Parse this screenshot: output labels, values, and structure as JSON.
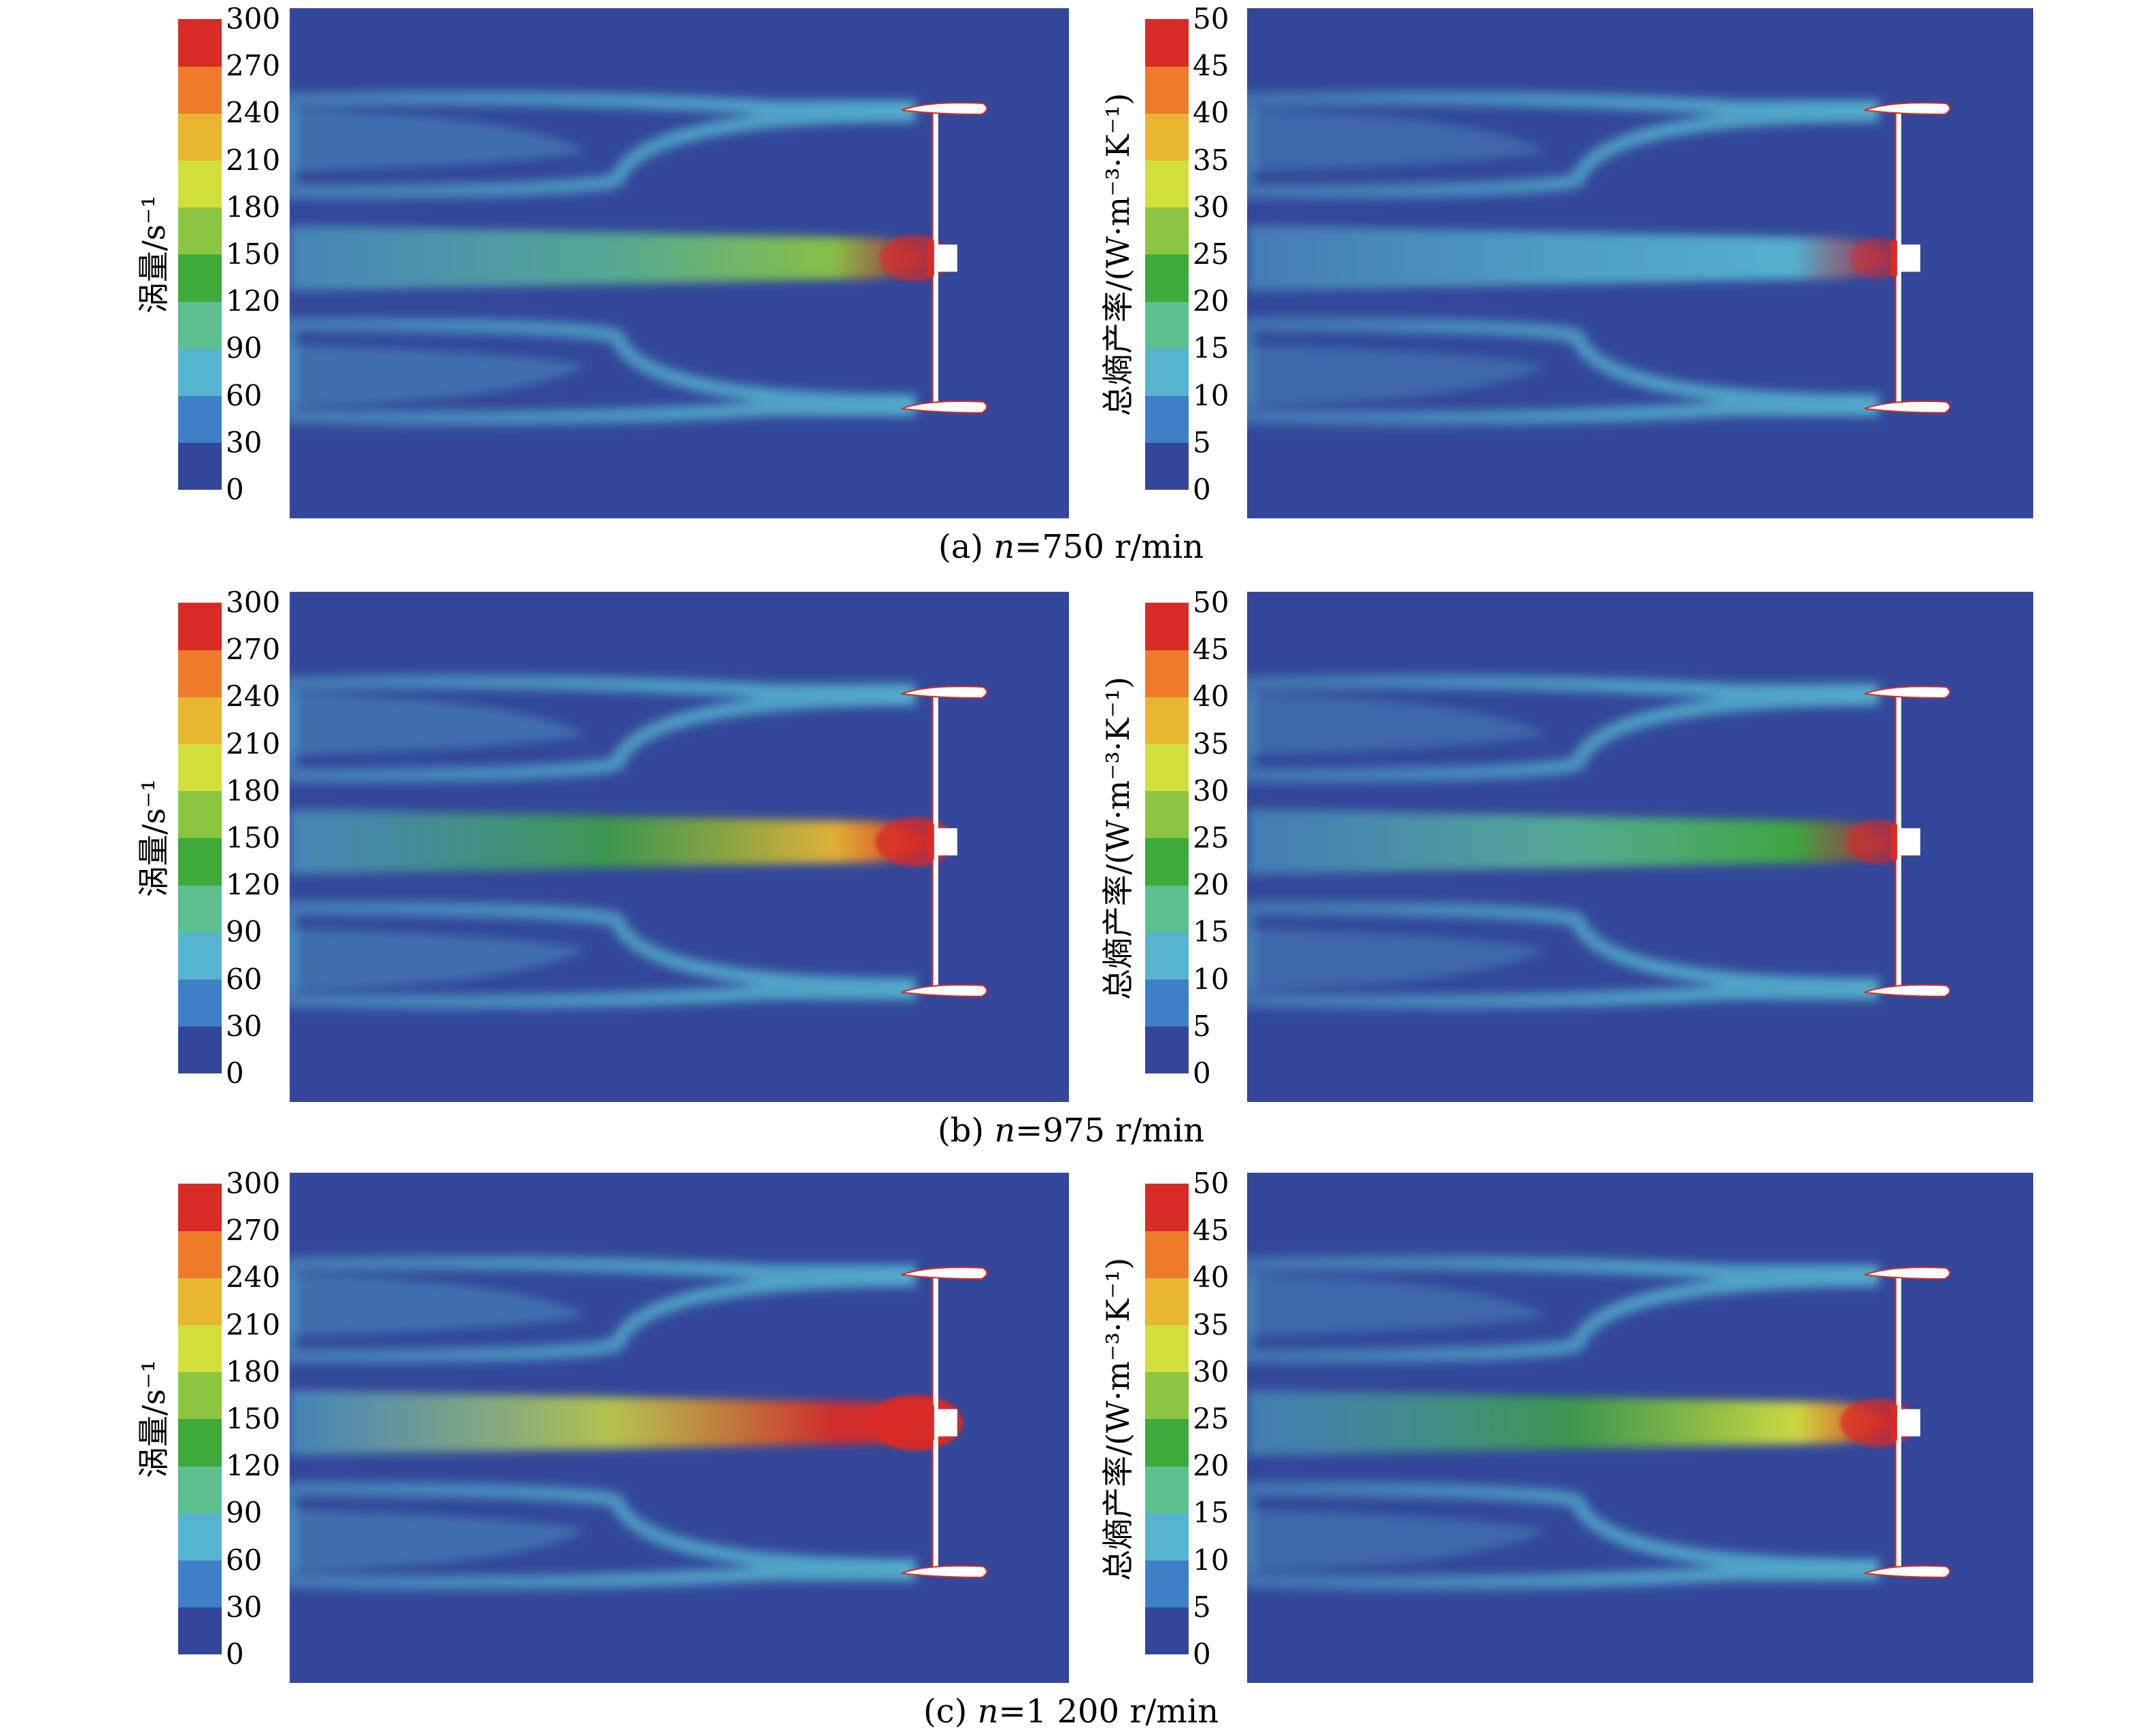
{
  "colormap": [
    "#32479a",
    "#3f7fc8",
    "#55b5d0",
    "#5dc090",
    "#3faa3c",
    "#8cc640",
    "#d3e03c",
    "#e8b631",
    "#ed7b2a",
    "#d82b26"
  ],
  "panels": [
    {
      "id": "a",
      "caption": {
        "prefix": "(a) ",
        "var": "n",
        "rest": "=750 r/min"
      },
      "speed_rpm": 750,
      "left": {
        "title": "涡量/s⁻¹",
        "ticks": [
          "0",
          "30",
          "60",
          "90",
          "120",
          "150",
          "180",
          "210",
          "240",
          "270",
          "300"
        ],
        "range": [
          0,
          300
        ],
        "wake_intensity": 0.45
      },
      "right": {
        "title": "总熵产率/(W·m⁻³·K⁻¹)",
        "ticks": [
          "0",
          "5",
          "10",
          "15",
          "20",
          "25",
          "30",
          "35",
          "40",
          "45",
          "50"
        ],
        "range": [
          0,
          50
        ],
        "wake_intensity": 0.18
      }
    },
    {
      "id": "b",
      "caption": {
        "prefix": "(b) ",
        "var": "n",
        "rest": "=975 r/min"
      },
      "speed_rpm": 975,
      "left": {
        "title": "涡量/s⁻¹",
        "ticks": [
          "0",
          "30",
          "60",
          "90",
          "120",
          "150",
          "180",
          "210",
          "240",
          "270",
          "300"
        ],
        "range": [
          0,
          300
        ],
        "wake_intensity": 0.6
      },
      "right": {
        "title": "总熵产率/(W·m⁻³·K⁻¹)",
        "ticks": [
          "0",
          "5",
          "10",
          "15",
          "20",
          "25",
          "30",
          "35",
          "40",
          "45",
          "50"
        ],
        "range": [
          0,
          50
        ],
        "wake_intensity": 0.35
      }
    },
    {
      "id": "c",
      "caption": {
        "prefix": "(c) ",
        "var": "n",
        "rest": "=1 200 r/min"
      },
      "speed_rpm": 1200,
      "left": {
        "title": "涡量/s⁻¹",
        "ticks": [
          "0",
          "30",
          "60",
          "90",
          "120",
          "150",
          "180",
          "210",
          "240",
          "270",
          "300"
        ],
        "range": [
          0,
          300
        ],
        "wake_intensity": 0.9
      },
      "right": {
        "title": "总熵产率/(W·m⁻³·K⁻¹)",
        "ticks": [
          "0",
          "5",
          "10",
          "15",
          "20",
          "25",
          "30",
          "35",
          "40",
          "45",
          "50"
        ],
        "range": [
          0,
          50
        ],
        "wake_intensity": 0.55
      }
    }
  ]
}
